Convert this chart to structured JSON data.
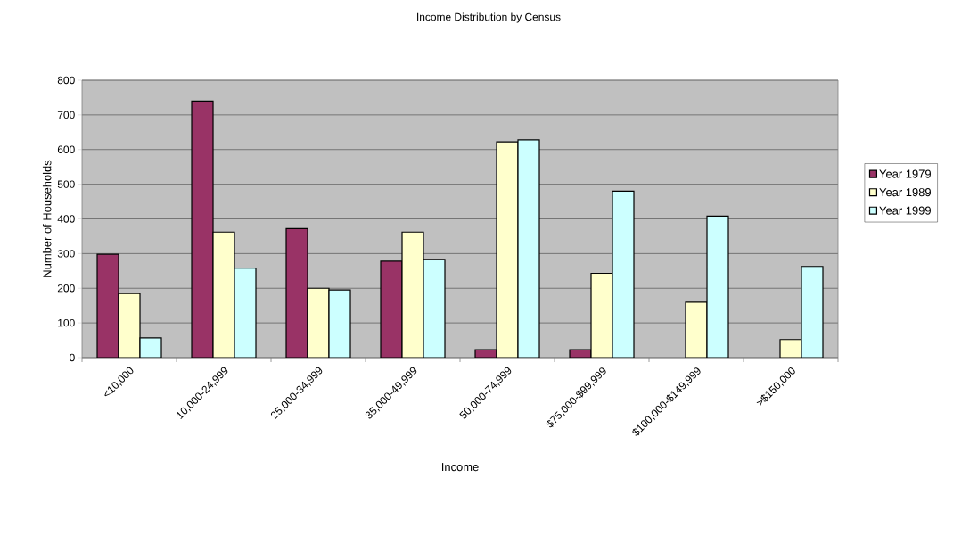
{
  "chart_data": {
    "type": "bar",
    "title": "Income Distribution by Census",
    "xlabel": "Income",
    "ylabel": "Number of Households",
    "categories": [
      "<10,000",
      "10,000-24,999",
      "25,000-34,999",
      "35,000-49,999",
      "50,000-74,999",
      "$75,000-$99,999",
      "$100,000-$149,999",
      ">$150,000"
    ],
    "series": [
      {
        "name": "Year 1979",
        "color": "#993366",
        "values": [
          298,
          740,
          372,
          278,
          23,
          23,
          null,
          null
        ]
      },
      {
        "name": "Year 1989",
        "color": "#ffffcc",
        "values": [
          185,
          362,
          200,
          362,
          622,
          243,
          160,
          52
        ]
      },
      {
        "name": "Year 1999",
        "color": "#ccffff",
        "values": [
          57,
          258,
          195,
          283,
          628,
          480,
          408,
          263
        ]
      }
    ],
    "ylim": [
      0,
      800
    ],
    "yticks": [
      0,
      100,
      200,
      300,
      400,
      500,
      600,
      700,
      800
    ],
    "grid": "y",
    "legend": "right"
  }
}
